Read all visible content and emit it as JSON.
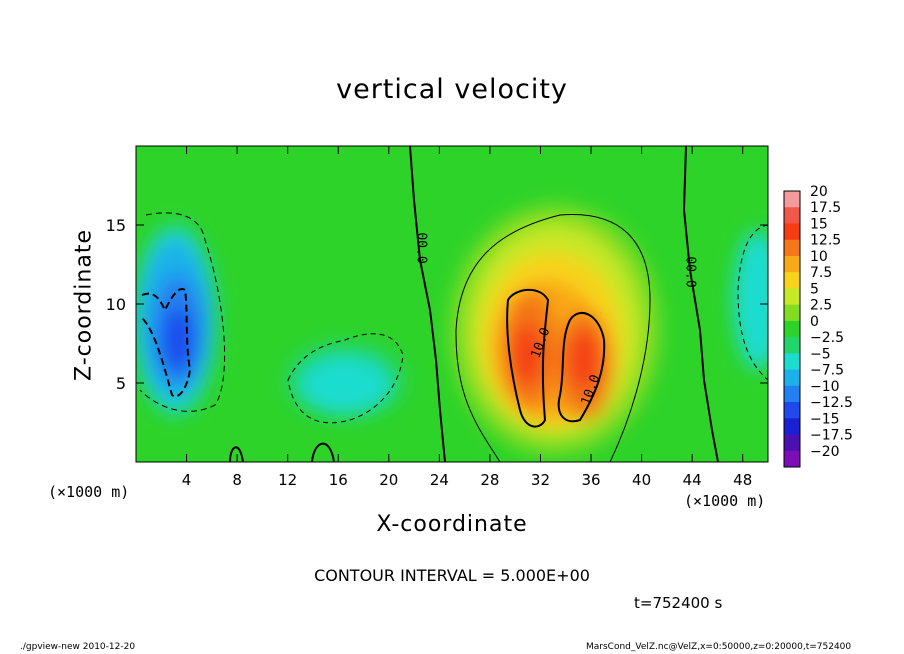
{
  "chart_data": {
    "type": "heatmap",
    "title": "vertical velocity",
    "xlabel": "X-coordinate",
    "ylabel": "Z-coordinate",
    "x_unit_label": "(×1000 m)",
    "z_unit_label": "(×1000 m)",
    "xlim": [
      0,
      50
    ],
    "ylim": [
      0,
      20
    ],
    "x_ticks": [
      "4",
      "8",
      "12",
      "16",
      "20",
      "24",
      "28",
      "32",
      "36",
      "40",
      "44",
      "48"
    ],
    "y_ticks": [
      "5",
      "10",
      "15"
    ],
    "colorbar": {
      "labels": [
        "20",
        "17.5",
        "15",
        "12.5",
        "10",
        "7.5",
        "5",
        "2.5",
        "0",
        "−2.5",
        "−5",
        "−7.5",
        "−10",
        "−12.5",
        "−15",
        "−17.5",
        "−20"
      ],
      "colors": [
        "#f39b9b",
        "#f2584a",
        "#f53c14",
        "#f47719",
        "#f8a918",
        "#f8d31b",
        "#c7e826",
        "#82dd20",
        "#2ed32a",
        "#21d56a",
        "#1adccf",
        "#1bb1ea",
        "#2280f0",
        "#1f48ed",
        "#1a1fd4",
        "#4a10b0",
        "#7c0eb8"
      ]
    },
    "contour_labels": [
      "00.0",
      "00.0",
      "10.0",
      "10.0"
    ],
    "contour_interval_text": "CONTOUR INTERVAL = 5.000E+00",
    "time_text": "t=752400 s",
    "features": [
      {
        "kind": "updraft",
        "x": 31,
        "z": 7,
        "peak": 12.5
      },
      {
        "kind": "updraft",
        "x": 35,
        "z": 6,
        "peak": 15
      },
      {
        "kind": "downdraft",
        "x": 3,
        "z": 8,
        "peak": -12.5
      },
      {
        "kind": "downdraft",
        "x": 17,
        "z": 5,
        "peak": -6
      },
      {
        "kind": "downdraft",
        "x": 49.5,
        "z": 11,
        "peak": -7
      }
    ]
  },
  "footer": {
    "left": "./gpview-new  2010-12-20",
    "right": "MarsCond_VelZ.nc@VelZ,x=0:50000,z=0:20000,t=752400"
  }
}
